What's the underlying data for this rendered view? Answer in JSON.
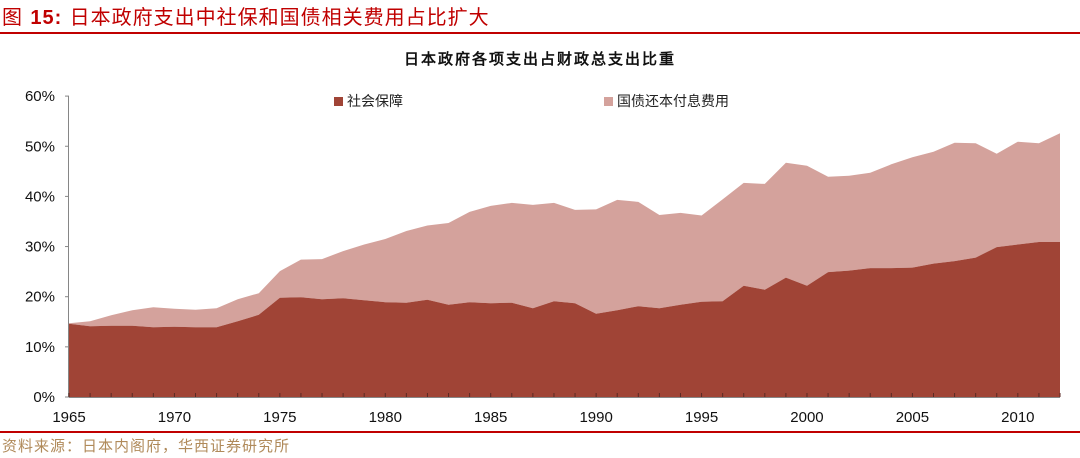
{
  "figure": {
    "label_prefix": "图 ",
    "label_number": "15:",
    "caption": " 日本政府支出中社保和国债相关费用占比扩大"
  },
  "source_note": "资料来源：日本内阁府，华西证券研究所",
  "colors": {
    "accent_red": "#c00000",
    "social_security": "#a04436",
    "debt_service": "#d4a29c",
    "source_text": "#b08a5a"
  },
  "chart_data": {
    "type": "area",
    "stacked": true,
    "title": "日本政府各项支出占财政总支出比重",
    "xlabel": "",
    "ylabel": "",
    "ylim": [
      0,
      60
    ],
    "y_ticks": [
      "0%",
      "10%",
      "20%",
      "30%",
      "40%",
      "50%",
      "60%"
    ],
    "x_tick_labels": [
      "1965",
      "1970",
      "1975",
      "1980",
      "1985",
      "1990",
      "1995",
      "2000",
      "2005",
      "2010"
    ],
    "grid": false,
    "legend_position": "top",
    "x": [
      1965,
      1966,
      1967,
      1968,
      1969,
      1970,
      1971,
      1972,
      1973,
      1974,
      1975,
      1976,
      1977,
      1978,
      1979,
      1980,
      1981,
      1982,
      1983,
      1984,
      1985,
      1986,
      1987,
      1988,
      1989,
      1990,
      1991,
      1992,
      1993,
      1994,
      1995,
      1996,
      1997,
      1998,
      1999,
      2000,
      2001,
      2002,
      2003,
      2004,
      2005,
      2006,
      2007,
      2008,
      2009,
      2010,
      2011,
      2012
    ],
    "series": [
      {
        "name": "社会保障",
        "color": "#a04436",
        "values": [
          14.6,
          14.1,
          14.2,
          14.2,
          13.9,
          14.0,
          13.9,
          13.9,
          15.1,
          16.4,
          19.8,
          19.9,
          19.5,
          19.7,
          19.3,
          18.9,
          18.8,
          19.4,
          18.4,
          18.9,
          18.7,
          18.8,
          17.7,
          19.1,
          18.7,
          16.6,
          17.3,
          18.1,
          17.7,
          18.4,
          19.0,
          19.1,
          22.2,
          21.4,
          23.8,
          22.2,
          24.9,
          25.2,
          25.7,
          25.7,
          25.8,
          26.6,
          27.1,
          27.8,
          29.9,
          30.4,
          30.9,
          30.9
        ]
      },
      {
        "name": "国债还本付息费用",
        "color": "#d4a29c",
        "values": [
          0.1,
          1.0,
          2.1,
          3.1,
          4.0,
          3.6,
          3.5,
          3.8,
          4.4,
          4.3,
          5.3,
          7.5,
          8.0,
          9.4,
          11.1,
          12.6,
          14.3,
          14.8,
          16.3,
          18.0,
          19.4,
          19.9,
          20.6,
          19.6,
          18.6,
          20.8,
          22.0,
          20.8,
          18.6,
          18.3,
          17.2,
          20.3,
          20.5,
          21.1,
          22.9,
          23.9,
          19.0,
          18.9,
          19.0,
          20.7,
          22.0,
          22.3,
          23.6,
          22.8,
          18.6,
          20.5,
          19.7,
          21.7
        ]
      }
    ],
    "totals": [
      14.7,
      15.1,
      16.3,
      17.3,
      17.9,
      17.6,
      17.4,
      17.7,
      19.5,
      20.7,
      25.1,
      27.4,
      27.5,
      29.1,
      30.4,
      31.5,
      33.1,
      34.2,
      34.7,
      36.9,
      38.1,
      38.7,
      38.3,
      38.7,
      37.3,
      37.4,
      39.3,
      38.9,
      36.3,
      36.7,
      36.2,
      39.4,
      42.7,
      42.5,
      46.7,
      46.1,
      43.9,
      44.1,
      44.7,
      46.4,
      47.8,
      48.9,
      50.7,
      50.6,
      48.5,
      50.9,
      50.6,
      52.6
    ]
  }
}
